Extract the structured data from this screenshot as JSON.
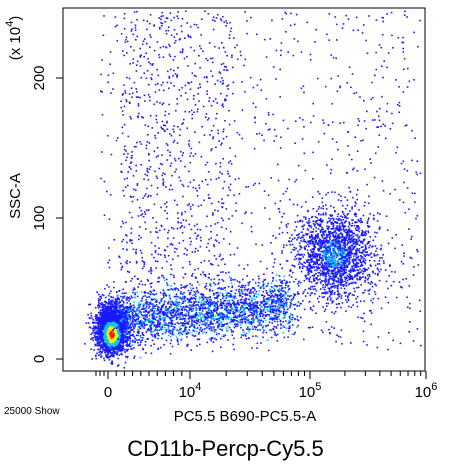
{
  "chart_data": {
    "type": "scatter",
    "title": "CD11b-Percp-Cy5.5",
    "xlabel": "PC5.5 B690-PC5.5-A",
    "ylabel": "SSC-A",
    "y_multiplier_label": "(x 10^4)",
    "y_ticks": [
      {
        "value": 0,
        "label": "0"
      },
      {
        "value": 100,
        "label": "100"
      },
      {
        "value": 200,
        "label": "200"
      }
    ],
    "x_ticks": [
      {
        "value": 0,
        "label": "0"
      },
      {
        "value": 10000,
        "label": "10^4"
      },
      {
        "value": 100000,
        "label": "10^5"
      },
      {
        "value": 1000000,
        "label": "10^6"
      }
    ],
    "ylim": [
      -10,
      250
    ],
    "x_scale": "biexponential",
    "xlim": [
      -300,
      1000000
    ],
    "event_count_label": "25000 Show",
    "series_colors": {
      "low": "#1a1aff",
      "mid": "#00c8ff",
      "high": "#ff2000",
      "peak": "#ffee00"
    },
    "populations": [
      {
        "name": "low-dense cluster",
        "x_center": 400,
        "y_center": 18,
        "density": "high"
      },
      {
        "name": "intermediate smear",
        "x_center": 8000,
        "y_center": 30,
        "density": "medium"
      },
      {
        "name": "CD11b+ high population",
        "x_center": 160000,
        "y_center": 75,
        "density": "medium"
      }
    ]
  }
}
